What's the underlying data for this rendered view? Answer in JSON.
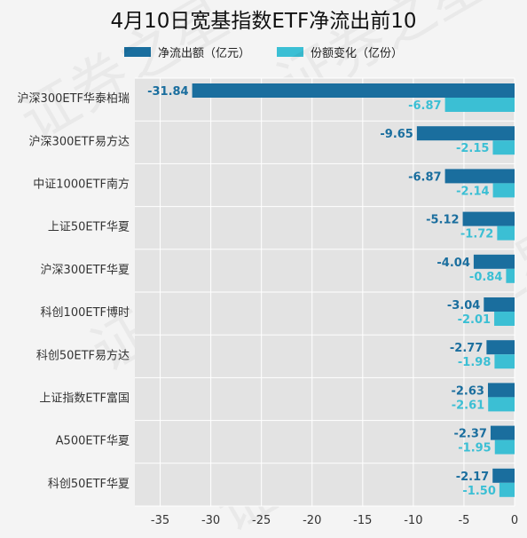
{
  "chart_data": {
    "type": "bar",
    "orientation": "horizontal",
    "title": "4月10日宽基指数ETF净流出前10",
    "categories": [
      "沪深300ETF华泰柏瑞",
      "沪深300ETF易方达",
      "中证1000ETF南方",
      "上证50ETF华夏",
      "沪深300ETF华夏",
      "科创100ETF博时",
      "科创50ETF易方达",
      "上证指数ETF富国",
      "A500ETF华夏",
      "科创50ETF华夏"
    ],
    "series": [
      {
        "name": "净流出额（亿元）",
        "color": "#1a6e9e",
        "values": [
          -31.84,
          -9.65,
          -6.87,
          -5.12,
          -4.04,
          -3.04,
          -2.77,
          -2.63,
          -2.37,
          -2.17
        ],
        "labels": [
          "-31.84",
          "-9.65",
          "-6.87",
          "-5.12",
          "-4.04",
          "-3.04",
          "-2.77",
          "-2.63",
          "-2.37",
          "-2.17"
        ]
      },
      {
        "name": "份额变化（亿份）",
        "color": "#3bbfd4",
        "values": [
          -6.87,
          -2.15,
          -2.14,
          -1.72,
          -0.84,
          -2.01,
          -1.98,
          -2.61,
          -1.95,
          -1.5
        ],
        "labels": [
          "-6.87",
          "-2.15",
          "-2.14",
          "-1.72",
          "-0.84",
          "-2.01",
          "-1.98",
          "-2.61",
          "-1.95",
          "-1.50"
        ]
      }
    ],
    "xlim": [
      -37.5,
      0
    ],
    "xticks": [
      -35,
      -30,
      -25,
      -20,
      -15,
      -10,
      -5,
      0
    ],
    "grid": true,
    "legend_position": "top",
    "watermark": "证券之星"
  }
}
